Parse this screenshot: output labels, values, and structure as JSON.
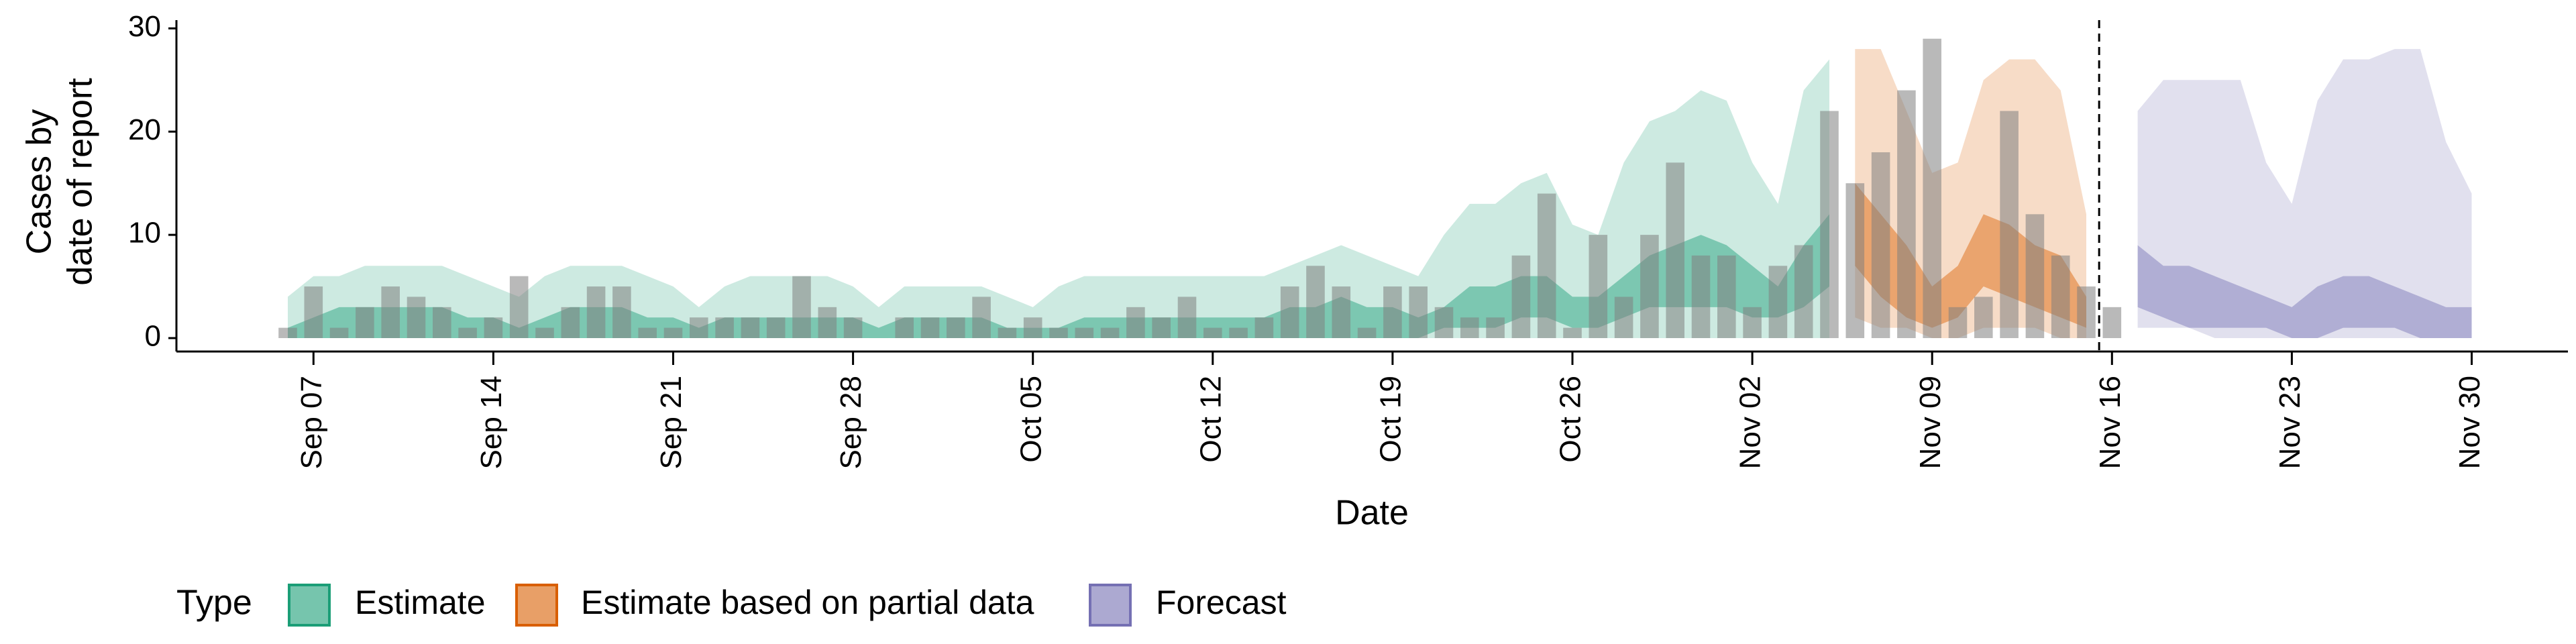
{
  "chart_data": {
    "type": "area",
    "ylabel": [
      "Cases by",
      "date of report"
    ],
    "xlabel": "Date",
    "legend_title": "Type",
    "legend": "bottom",
    "vline": "Nov 16",
    "categories": [
      "Sep 06",
      "Sep 07",
      "Sep 08",
      "Sep 09",
      "Sep 10",
      "Sep 11",
      "Sep 12",
      "Sep 13",
      "Sep 14",
      "Sep 15",
      "Sep 16",
      "Sep 17",
      "Sep 18",
      "Sep 19",
      "Sep 20",
      "Sep 21",
      "Sep 22",
      "Sep 23",
      "Sep 24",
      "Sep 25",
      "Sep 26",
      "Sep 27",
      "Sep 28",
      "Sep 29",
      "Sep 30",
      "Oct 01",
      "Oct 02",
      "Oct 03",
      "Oct 04",
      "Oct 05",
      "Oct 06",
      "Oct 07",
      "Oct 08",
      "Oct 09",
      "Oct 10",
      "Oct 11",
      "Oct 12",
      "Oct 13",
      "Oct 14",
      "Oct 15",
      "Oct 16",
      "Oct 17",
      "Oct 18",
      "Oct 19",
      "Oct 20",
      "Oct 21",
      "Oct 22",
      "Oct 23",
      "Oct 24",
      "Oct 25",
      "Oct 26",
      "Oct 27",
      "Oct 28",
      "Oct 29",
      "Oct 30",
      "Oct 31",
      "Nov 01",
      "Nov 02",
      "Nov 03",
      "Nov 04",
      "Nov 05",
      "Nov 06",
      "Nov 07",
      "Nov 08",
      "Nov 09",
      "Nov 10",
      "Nov 11",
      "Nov 12",
      "Nov 13",
      "Nov 14",
      "Nov 15",
      "Nov 16",
      "Nov 17",
      "Nov 18",
      "Nov 19",
      "Nov 20",
      "Nov 21",
      "Nov 22",
      "Nov 23",
      "Nov 24",
      "Nov 25",
      "Nov 26",
      "Nov 27",
      "Nov 28",
      "Nov 29",
      "Nov 30"
    ],
    "xticks": [
      "Sep 07",
      "Sep 14",
      "Sep 21",
      "Sep 28",
      "Oct 05",
      "Oct 12",
      "Oct 19",
      "Oct 26",
      "Nov 02",
      "Nov 09",
      "Nov 16",
      "Nov 23",
      "Nov 30"
    ],
    "ylim": [
      -1.3,
      30.8
    ],
    "yticks": [
      0,
      10,
      20,
      30
    ],
    "bars": {
      "color": "#7f7f7f",
      "values": [
        1,
        5,
        1,
        3,
        5,
        4,
        3,
        1,
        2,
        6,
        1,
        3,
        5,
        5,
        1,
        1,
        2,
        2,
        2,
        2,
        6,
        3,
        2,
        0,
        2,
        2,
        2,
        4,
        1,
        2,
        1,
        1,
        1,
        3,
        2,
        4,
        1,
        1,
        2,
        5,
        7,
        5,
        1,
        5,
        5,
        3,
        2,
        2,
        8,
        14,
        1,
        10,
        4,
        10,
        17,
        8,
        8,
        3,
        7,
        9,
        22,
        15,
        18,
        24,
        29,
        3,
        4,
        22,
        12,
        8,
        5,
        3,
        null,
        null,
        null,
        null,
        null,
        null,
        null,
        null,
        null,
        null,
        null,
        null,
        null,
        null
      ]
    },
    "series": [
      {
        "name": "Estimate",
        "color": "#1b9e77",
        "upper": [
          4,
          6,
          6,
          7,
          7,
          7,
          7,
          6,
          5,
          4,
          6,
          7,
          7,
          7,
          6,
          5,
          3,
          5,
          6,
          6,
          6,
          6,
          5,
          3,
          5,
          5,
          5,
          5,
          4,
          3,
          5,
          6,
          6,
          6,
          6,
          6,
          6,
          6,
          6,
          7,
          8,
          9,
          8,
          7,
          6,
          10,
          13,
          13,
          15,
          16,
          11,
          10,
          17,
          21,
          22,
          24,
          23,
          17,
          13,
          24,
          27,
          null,
          null,
          null,
          null,
          null,
          null,
          null,
          null,
          null,
          null,
          null,
          null,
          null,
          null,
          null,
          null,
          null,
          null,
          null,
          null,
          null,
          null,
          null,
          null,
          null
        ],
        "lower": [
          0,
          0,
          0,
          0,
          0,
          0,
          0,
          0,
          0,
          0,
          0,
          0,
          0,
          0,
          0,
          0,
          0,
          0,
          0,
          0,
          0,
          0,
          0,
          0,
          0,
          0,
          0,
          0,
          0,
          0,
          0,
          0,
          0,
          0,
          0,
          0,
          0,
          0,
          0,
          0,
          0,
          0,
          0,
          0,
          0,
          0,
          0,
          0,
          0,
          0,
          0,
          0,
          0,
          0,
          0,
          0,
          0,
          0,
          0,
          0,
          0,
          null,
          null,
          null,
          null,
          null,
          null,
          null,
          null,
          null,
          null,
          null,
          null,
          null,
          null,
          null,
          null,
          null,
          null,
          null,
          null,
          null,
          null,
          null,
          null,
          null
        ],
        "inner_upper": [
          1,
          2,
          3,
          3,
          3,
          3,
          3,
          2,
          2,
          1,
          2,
          3,
          3,
          3,
          2,
          2,
          1,
          2,
          2,
          2,
          2,
          2,
          2,
          1,
          2,
          2,
          2,
          2,
          1,
          1,
          1,
          2,
          2,
          2,
          2,
          2,
          2,
          2,
          2,
          3,
          3,
          4,
          3,
          3,
          2,
          3,
          5,
          5,
          6,
          6,
          4,
          4,
          6,
          8,
          9,
          10,
          9,
          7,
          5,
          9,
          12,
          null,
          null,
          null,
          null,
          null,
          null,
          null,
          null,
          null,
          null,
          null,
          null,
          null,
          null,
          null,
          null,
          null,
          null,
          null,
          null,
          null,
          null,
          null,
          null,
          null
        ],
        "inner_lower": [
          0,
          0,
          0,
          0,
          0,
          0,
          0,
          0,
          0,
          0,
          0,
          0,
          0,
          0,
          0,
          0,
          0,
          0,
          0,
          0,
          0,
          0,
          0,
          0,
          0,
          0,
          0,
          0,
          0,
          0,
          0,
          0,
          0,
          0,
          0,
          0,
          0,
          0,
          0,
          0,
          0,
          0,
          0,
          0,
          0,
          1,
          1,
          1,
          2,
          2,
          1,
          1,
          2,
          3,
          3,
          3,
          3,
          2,
          2,
          3,
          5,
          null,
          null,
          null,
          null,
          null,
          null,
          null,
          null,
          null,
          null,
          null,
          null,
          null,
          null,
          null,
          null,
          null,
          null,
          null,
          null,
          null,
          null,
          null,
          null,
          null
        ]
      },
      {
        "name": "Estimate based on partial data",
        "color": "#d95f02",
        "upper": [
          null,
          null,
          null,
          null,
          null,
          null,
          null,
          null,
          null,
          null,
          null,
          null,
          null,
          null,
          null,
          null,
          null,
          null,
          null,
          null,
          null,
          null,
          null,
          null,
          null,
          null,
          null,
          null,
          null,
          null,
          null,
          null,
          null,
          null,
          null,
          null,
          null,
          null,
          null,
          null,
          null,
          null,
          null,
          null,
          null,
          null,
          null,
          null,
          null,
          null,
          null,
          null,
          null,
          null,
          null,
          null,
          null,
          null,
          null,
          null,
          null,
          28,
          28,
          22,
          16,
          17,
          25,
          27,
          27,
          24,
          12,
          null,
          null,
          null,
          null,
          null,
          null,
          null,
          null,
          null,
          null,
          null,
          null,
          null,
          null,
          null
        ],
        "lower": [
          null,
          null,
          null,
          null,
          null,
          null,
          null,
          null,
          null,
          null,
          null,
          null,
          null,
          null,
          null,
          null,
          null,
          null,
          null,
          null,
          null,
          null,
          null,
          null,
          null,
          null,
          null,
          null,
          null,
          null,
          null,
          null,
          null,
          null,
          null,
          null,
          null,
          null,
          null,
          null,
          null,
          null,
          null,
          null,
          null,
          null,
          null,
          null,
          null,
          null,
          null,
          null,
          null,
          null,
          null,
          null,
          null,
          null,
          null,
          null,
          null,
          2,
          1,
          1,
          0,
          0,
          1,
          1,
          1,
          0,
          0,
          null,
          null,
          null,
          null,
          null,
          null,
          null,
          null,
          null,
          null,
          null,
          null,
          null,
          null,
          null
        ],
        "inner_upper": [
          null,
          null,
          null,
          null,
          null,
          null,
          null,
          null,
          null,
          null,
          null,
          null,
          null,
          null,
          null,
          null,
          null,
          null,
          null,
          null,
          null,
          null,
          null,
          null,
          null,
          null,
          null,
          null,
          null,
          null,
          null,
          null,
          null,
          null,
          null,
          null,
          null,
          null,
          null,
          null,
          null,
          null,
          null,
          null,
          null,
          null,
          null,
          null,
          null,
          null,
          null,
          null,
          null,
          null,
          null,
          null,
          null,
          null,
          null,
          null,
          null,
          15,
          12,
          9,
          5,
          7,
          12,
          11,
          9,
          8,
          4,
          null,
          null,
          null,
          null,
          null,
          null,
          null,
          null,
          null,
          null,
          null,
          null,
          null,
          null,
          null
        ],
        "inner_lower": [
          null,
          null,
          null,
          null,
          null,
          null,
          null,
          null,
          null,
          null,
          null,
          null,
          null,
          null,
          null,
          null,
          null,
          null,
          null,
          null,
          null,
          null,
          null,
          null,
          null,
          null,
          null,
          null,
          null,
          null,
          null,
          null,
          null,
          null,
          null,
          null,
          null,
          null,
          null,
          null,
          null,
          null,
          null,
          null,
          null,
          null,
          null,
          null,
          null,
          null,
          null,
          null,
          null,
          null,
          null,
          null,
          null,
          null,
          null,
          null,
          null,
          7,
          4,
          2,
          1,
          2,
          5,
          4,
          3,
          2,
          1,
          null,
          null,
          null,
          null,
          null,
          null,
          null,
          null,
          null,
          null,
          null,
          null,
          null,
          null,
          null
        ]
      },
      {
        "name": "Forecast",
        "color": "#7570b3",
        "upper": [
          null,
          null,
          null,
          null,
          null,
          null,
          null,
          null,
          null,
          null,
          null,
          null,
          null,
          null,
          null,
          null,
          null,
          null,
          null,
          null,
          null,
          null,
          null,
          null,
          null,
          null,
          null,
          null,
          null,
          null,
          null,
          null,
          null,
          null,
          null,
          null,
          null,
          null,
          null,
          null,
          null,
          null,
          null,
          null,
          null,
          null,
          null,
          null,
          null,
          null,
          null,
          null,
          null,
          null,
          null,
          null,
          null,
          null,
          null,
          null,
          null,
          null,
          null,
          null,
          null,
          null,
          null,
          null,
          null,
          null,
          null,
          null,
          22,
          25,
          25,
          25,
          25,
          17,
          13,
          23,
          27,
          27,
          28,
          28,
          19,
          14
        ],
        "lower": [
          null,
          null,
          null,
          null,
          null,
          null,
          null,
          null,
          null,
          null,
          null,
          null,
          null,
          null,
          null,
          null,
          null,
          null,
          null,
          null,
          null,
          null,
          null,
          null,
          null,
          null,
          null,
          null,
          null,
          null,
          null,
          null,
          null,
          null,
          null,
          null,
          null,
          null,
          null,
          null,
          null,
          null,
          null,
          null,
          null,
          null,
          null,
          null,
          null,
          null,
          null,
          null,
          null,
          null,
          null,
          null,
          null,
          null,
          null,
          null,
          null,
          null,
          null,
          null,
          null,
          null,
          null,
          null,
          null,
          null,
          null,
          null,
          1,
          1,
          1,
          0,
          0,
          0,
          0,
          0,
          0,
          0,
          0,
          0,
          0,
          0
        ],
        "inner_upper": [
          null,
          null,
          null,
          null,
          null,
          null,
          null,
          null,
          null,
          null,
          null,
          null,
          null,
          null,
          null,
          null,
          null,
          null,
          null,
          null,
          null,
          null,
          null,
          null,
          null,
          null,
          null,
          null,
          null,
          null,
          null,
          null,
          null,
          null,
          null,
          null,
          null,
          null,
          null,
          null,
          null,
          null,
          null,
          null,
          null,
          null,
          null,
          null,
          null,
          null,
          null,
          null,
          null,
          null,
          null,
          null,
          null,
          null,
          null,
          null,
          null,
          null,
          null,
          null,
          null,
          null,
          null,
          null,
          null,
          null,
          null,
          null,
          9,
          7,
          7,
          6,
          5,
          4,
          3,
          5,
          6,
          6,
          5,
          4,
          3,
          3
        ],
        "inner_lower": [
          null,
          null,
          null,
          null,
          null,
          null,
          null,
          null,
          null,
          null,
          null,
          null,
          null,
          null,
          null,
          null,
          null,
          null,
          null,
          null,
          null,
          null,
          null,
          null,
          null,
          null,
          null,
          null,
          null,
          null,
          null,
          null,
          null,
          null,
          null,
          null,
          null,
          null,
          null,
          null,
          null,
          null,
          null,
          null,
          null,
          null,
          null,
          null,
          null,
          null,
          null,
          null,
          null,
          null,
          null,
          null,
          null,
          null,
          null,
          null,
          null,
          null,
          null,
          null,
          null,
          null,
          null,
          null,
          null,
          null,
          null,
          null,
          3,
          2,
          1,
          1,
          1,
          1,
          0,
          0,
          1,
          1,
          1,
          0,
          0,
          0
        ]
      }
    ]
  }
}
